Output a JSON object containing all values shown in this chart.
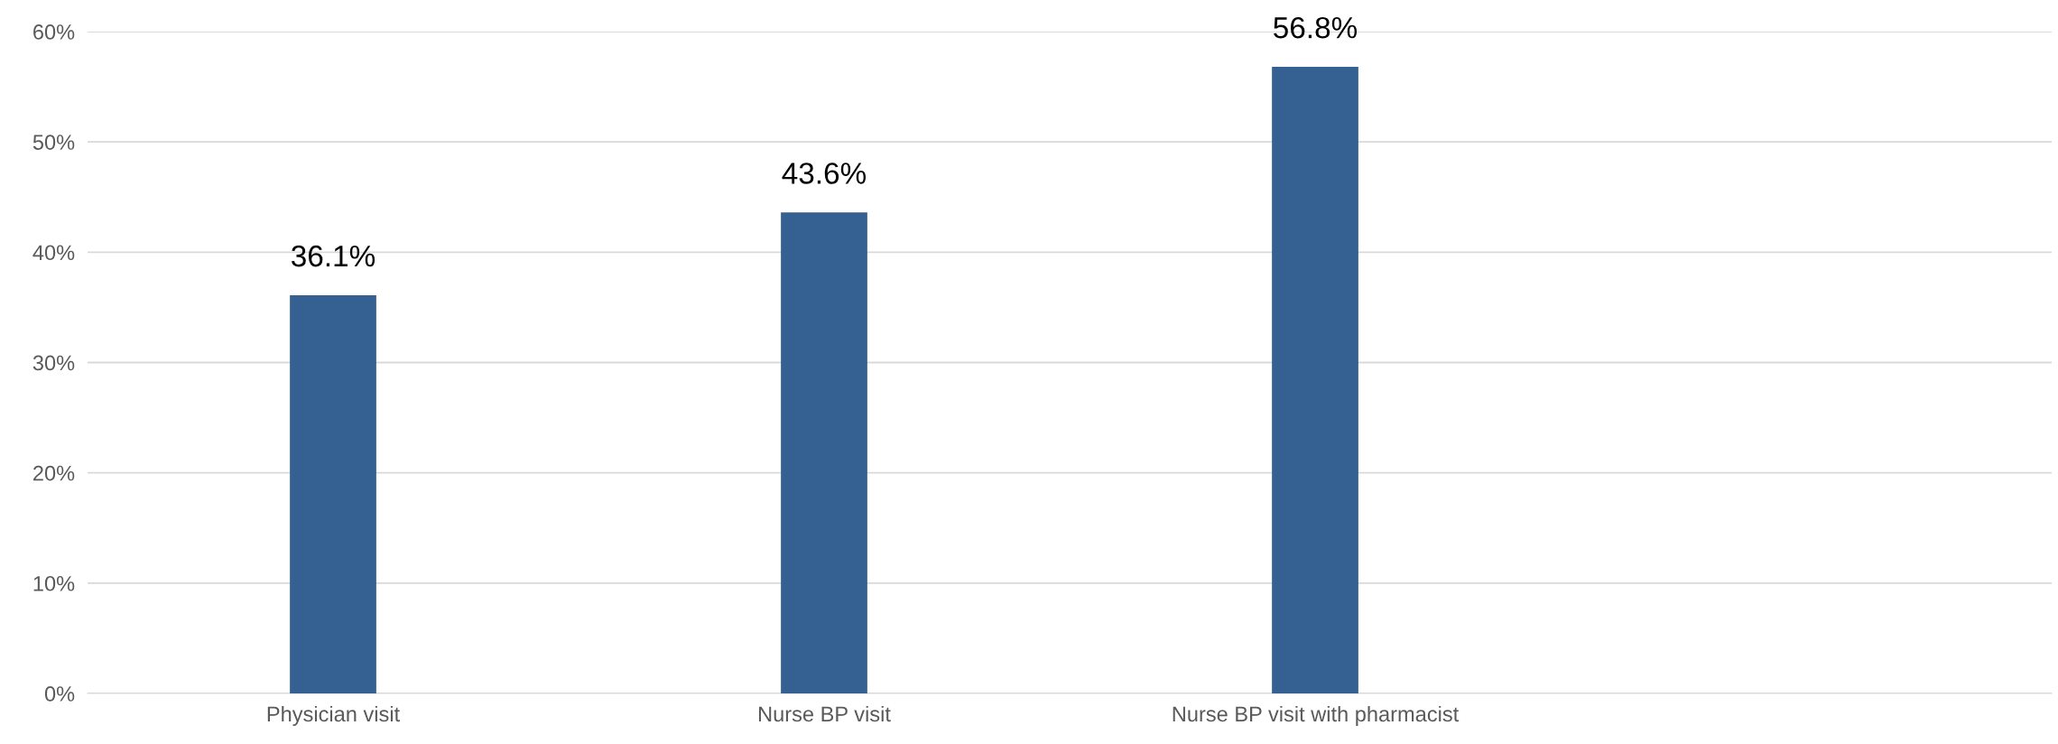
{
  "chart_data": {
    "type": "bar",
    "categories": [
      "Physician visit",
      "Nurse BP visit",
      "Nurse BP visit with pharmacist",
      null
    ],
    "values": [
      36.1,
      43.6,
      56.8,
      null
    ],
    "value_labels": [
      "36.1%",
      "43.6%",
      "56.8%",
      null
    ],
    "color": "#356092",
    "ylim": [
      0,
      60
    ],
    "yticks": [
      {
        "value": 0,
        "label": "0%"
      },
      {
        "value": 10,
        "label": "10%"
      },
      {
        "value": 20,
        "label": "20%"
      },
      {
        "value": 30,
        "label": "30%"
      },
      {
        "value": 40,
        "label": "40%"
      },
      {
        "value": 50,
        "label": "50%"
      },
      {
        "value": 60,
        "label": "60%"
      }
    ],
    "grid": "y",
    "legend": false
  }
}
